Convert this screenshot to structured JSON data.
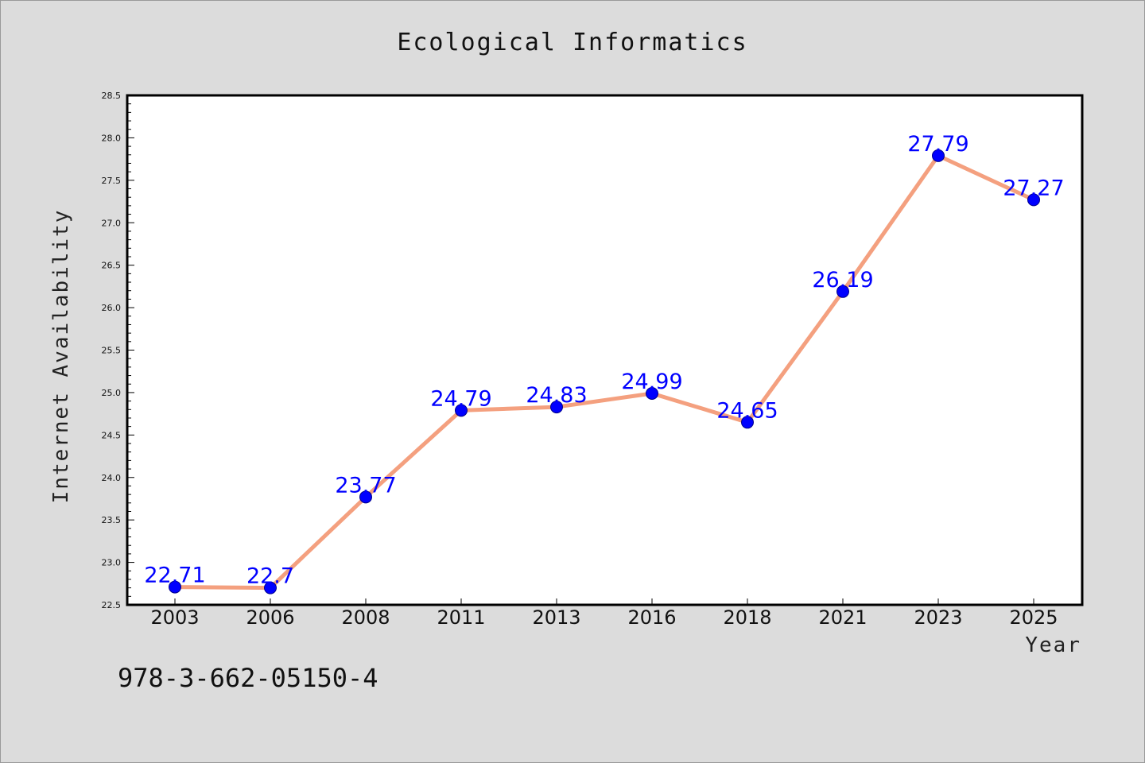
{
  "footer_code": "978-3-662-05150-4",
  "colors": {
    "background": "#dcdcdc",
    "plot_background": "#ffffff",
    "line": "#f4a07f",
    "marker": "#0000ff",
    "data_label": "#0000ff"
  },
  "chart_data": {
    "type": "line",
    "title": "Ecological Informatics",
    "xlabel": "Year",
    "ylabel": "Internet Availability",
    "categories": [
      "2003",
      "2006",
      "2008",
      "2011",
      "2013",
      "2016",
      "2018",
      "2021",
      "2023",
      "2025"
    ],
    "series": [
      {
        "values": [
          22.71,
          22.7,
          23.77,
          24.79,
          24.83,
          24.99,
          24.65,
          26.19,
          27.79,
          27.27
        ],
        "data_labels": [
          "22.71",
          "22.7",
          "23.77",
          "24.79",
          "24.83",
          "24.99",
          "24.65",
          "26.19",
          "27.79",
          "27.27"
        ]
      }
    ],
    "ylim": [
      22.5,
      28.5
    ],
    "yticks": [
      "22.5",
      "23.0",
      "23.5",
      "24.0",
      "24.5",
      "25.0",
      "25.5",
      "26.0",
      "26.5",
      "27.0",
      "27.5",
      "28.0",
      "28.5"
    ],
    "grid": false,
    "legend": "none"
  }
}
